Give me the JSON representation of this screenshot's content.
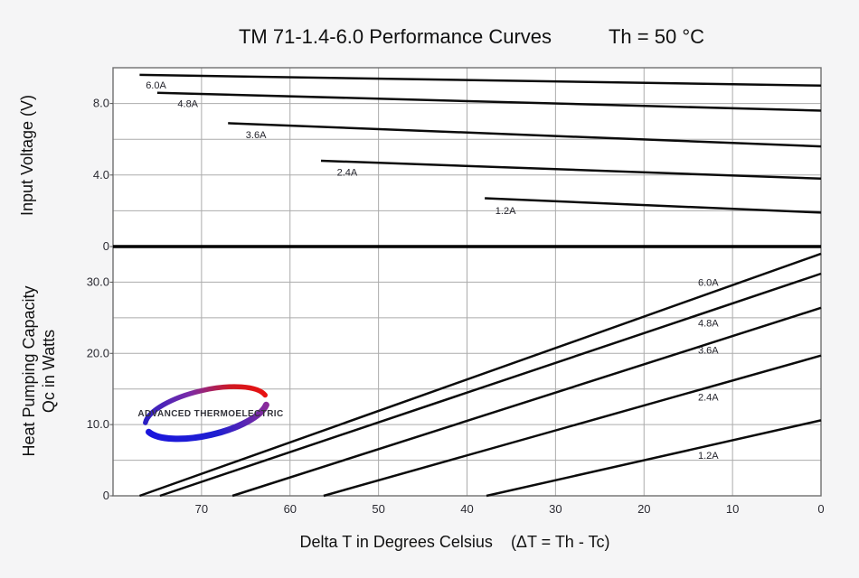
{
  "header": {
    "title_main": "TM 71-1.4-6.0 Performance Curves",
    "title_condition": "Th = 50 °C"
  },
  "logo": {
    "text": "ADVANCED THERMOELECTRIC",
    "blue": "#1b16dd",
    "red": "#e81111"
  },
  "chart_data": {
    "type": "line",
    "title": "TM 71-1.4-6.0 Performance Curves",
    "condition": "Th = 50 °C",
    "xlabel": "Delta T in Degrees Celsius    (ΔT = Th - Tc)",
    "xlim": [
      80,
      0
    ],
    "x_axis_reversed": true,
    "x_ticks": [
      70,
      60,
      50,
      40,
      30,
      20,
      10,
      0
    ],
    "grid": true,
    "curve_color": "#0b0b0b",
    "panels": [
      {
        "name": "input_voltage",
        "ylabel": "Input Voltage (V)",
        "ylim": [
          0,
          10
        ],
        "grid_step_y": 2,
        "y_ticks": [
          {
            "value": 8,
            "label": "8.0"
          },
          {
            "value": 4,
            "label": "4.0"
          },
          {
            "value": 0,
            "label": "0"
          }
        ],
        "series": [
          {
            "name": "6.0A",
            "points": [
              [
                77,
                9.6
              ],
              [
                0,
                9.0
              ]
            ],
            "label_at": [
              76.3,
              8.85
            ]
          },
          {
            "name": "4.8A",
            "points": [
              [
                75,
                8.6
              ],
              [
                0,
                7.6
              ]
            ],
            "label_at": [
              72.7,
              7.8
            ]
          },
          {
            "name": "3.6A",
            "points": [
              [
                67,
                6.9
              ],
              [
                0,
                5.6
              ]
            ],
            "label_at": [
              65.0,
              6.05
            ]
          },
          {
            "name": "2.4A",
            "points": [
              [
                56.5,
                4.8
              ],
              [
                0,
                3.8
              ]
            ],
            "label_at": [
              54.7,
              3.97
            ]
          },
          {
            "name": "1.2A",
            "points": [
              [
                38,
                2.7
              ],
              [
                0,
                1.9
              ]
            ],
            "label_at": [
              36.8,
              1.82
            ]
          }
        ]
      },
      {
        "name": "heat_pumping_capacity",
        "ylabel_line1": "Heat Pumping Capacity",
        "ylabel_line2": "Qc in Watts",
        "ylim": [
          0,
          35
        ],
        "grid_step_y": 5,
        "y_ticks": [
          {
            "value": 30,
            "label": "30.0"
          },
          {
            "value": 20,
            "label": "20.0"
          },
          {
            "value": 10,
            "label": "10.0"
          },
          {
            "value": 0,
            "label": "0"
          }
        ],
        "series": [
          {
            "name": "6.0A",
            "points": [
              [
                77,
                0
              ],
              [
                0,
                34.0
              ]
            ],
            "label_at": [
              13.9,
              29.5
            ]
          },
          {
            "name": "4.8A",
            "points": [
              [
                74.7,
                0
              ],
              [
                0,
                31.2
              ]
            ],
            "label_at": [
              13.9,
              23.8
            ]
          },
          {
            "name": "3.6A",
            "points": [
              [
                66.5,
                0
              ],
              [
                0,
                26.4
              ]
            ],
            "label_at": [
              13.9,
              20.0
            ]
          },
          {
            "name": "2.4A",
            "points": [
              [
                56.2,
                0
              ],
              [
                0,
                19.7
              ]
            ],
            "label_at": [
              13.9,
              13.4
            ]
          },
          {
            "name": "1.2A",
            "points": [
              [
                37.8,
                0
              ],
              [
                0,
                10.6
              ]
            ],
            "label_at": [
              13.9,
              5.2
            ]
          }
        ]
      }
    ]
  }
}
